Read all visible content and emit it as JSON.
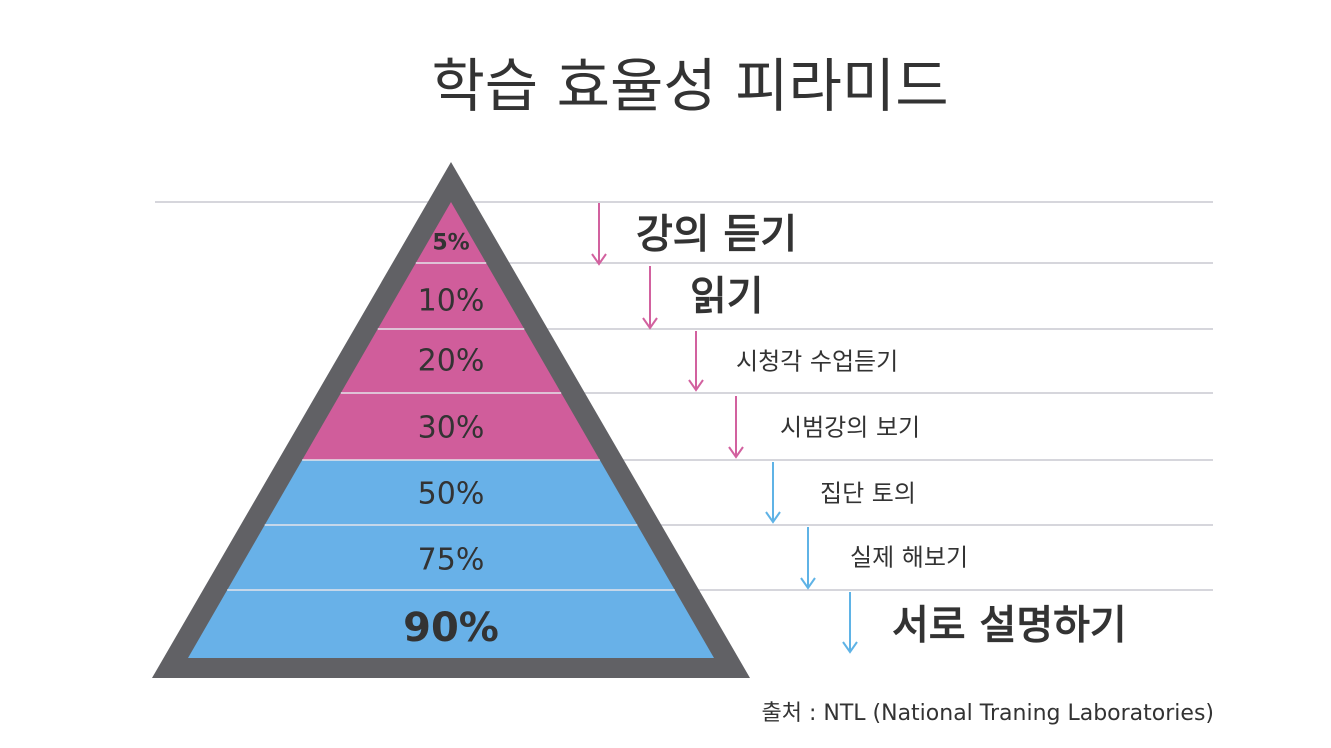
{
  "title": "학습 효율성 피라미드",
  "source": "출처 : NTL (National Traning Laboratories)",
  "colors": {
    "outline": "#616165",
    "upper": "#d05d9b",
    "lower": "#68b1e8",
    "separator": "#c8c8d0",
    "arrow_upper": "#d2619f",
    "arrow_lower": "#5fb3e6",
    "text": "#333333",
    "highlight": "#d05d9b"
  },
  "levels": [
    {
      "percent": "5%",
      "label": "강의 듣기",
      "group": "upper"
    },
    {
      "percent": "10%",
      "label": "읽기",
      "group": "upper"
    },
    {
      "percent": "20%",
      "label": "시청각 수업듣기",
      "group": "upper"
    },
    {
      "percent": "30%",
      "label": "시범강의 보기",
      "group": "upper"
    },
    {
      "percent": "50%",
      "label": "집단 토의",
      "group": "lower"
    },
    {
      "percent": "75%",
      "label": "실제 해보기",
      "group": "lower"
    },
    {
      "percent": "90%",
      "label": "서로 설명하기",
      "group": "lower"
    }
  ]
}
